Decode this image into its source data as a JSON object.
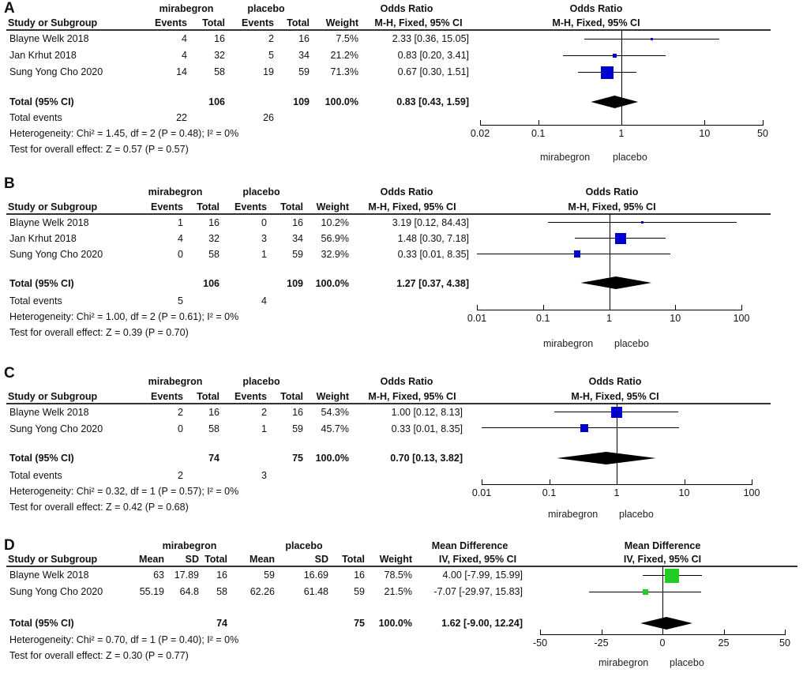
{
  "chart_data": [
    {
      "panel": "A",
      "type": "forest",
      "scale": "log",
      "measure": "Odds Ratio",
      "method": "M-H, Fixed, 95% CI",
      "group1": "mirabegron",
      "group2": "placebo",
      "headers": {
        "study": "Study or Subgroup",
        "events": "Events",
        "total": "Total",
        "weight": "Weight"
      },
      "studies": [
        {
          "name": "Blayne Welk 2018",
          "e1": "4",
          "n1": "16",
          "e2": "2",
          "n2": "16",
          "weight": "7.5%",
          "ci_text": "2.33 [0.36, 15.05]",
          "est": 2.33,
          "lo": 0.36,
          "hi": 15.05,
          "w": 7.5
        },
        {
          "name": "Jan Krhut 2018",
          "e1": "4",
          "n1": "32",
          "e2": "5",
          "n2": "34",
          "weight": "21.2%",
          "ci_text": "0.83 [0.20, 3.41]",
          "est": 0.83,
          "lo": 0.2,
          "hi": 3.41,
          "w": 21.2
        },
        {
          "name": "Sung Yong Cho 2020",
          "e1": "14",
          "n1": "58",
          "e2": "19",
          "n2": "59",
          "weight": "71.3%",
          "ci_text": "0.67 [0.30, 1.51]",
          "est": 0.67,
          "lo": 0.3,
          "hi": 1.51,
          "w": 71.3
        }
      ],
      "total": {
        "label": "Total (95% CI)",
        "n1": "106",
        "n2": "109",
        "weight": "100.0%",
        "ci_text": "0.83 [0.43, 1.59]",
        "est": 0.83,
        "lo": 0.43,
        "hi": 1.59
      },
      "total_events": {
        "label": "Total events",
        "e1": "22",
        "e2": "26"
      },
      "heterogeneity": "Heterogeneity: Chi² = 1.45, df = 2 (P = 0.48); I² = 0%",
      "overall": "Test for overall effect: Z = 0.57 (P = 0.57)",
      "ticks": [
        0.02,
        0.1,
        1,
        10,
        50
      ],
      "tick_labels": [
        "0.02",
        "0.1",
        "1",
        "10",
        "50"
      ],
      "xlim": [
        0.02,
        50
      ],
      "favours_left": "mirabegron",
      "favours_right": "placebo",
      "marker_color": "#0000cc"
    },
    {
      "panel": "B",
      "type": "forest",
      "scale": "log",
      "measure": "Odds Ratio",
      "method": "M-H, Fixed, 95% CI",
      "group1": "mirabegron",
      "group2": "placebo",
      "headers": {
        "study": "Study or Subgroup",
        "events": "Events",
        "total": "Total",
        "weight": "Weight"
      },
      "studies": [
        {
          "name": "Blayne Welk 2018",
          "e1": "1",
          "n1": "16",
          "e2": "0",
          "n2": "16",
          "weight": "10.2%",
          "ci_text": "3.19 [0.12, 84.43]",
          "est": 3.19,
          "lo": 0.12,
          "hi": 84.43,
          "w": 10.2
        },
        {
          "name": "Jan Krhut 2018",
          "e1": "4",
          "n1": "32",
          "e2": "3",
          "n2": "34",
          "weight": "56.9%",
          "ci_text": "1.48 [0.30, 7.18]",
          "est": 1.48,
          "lo": 0.3,
          "hi": 7.18,
          "w": 56.9
        },
        {
          "name": "Sung Yong Cho 2020",
          "e1": "0",
          "n1": "58",
          "e2": "1",
          "n2": "59",
          "weight": "32.9%",
          "ci_text": "0.33 [0.01, 8.35]",
          "est": 0.33,
          "lo": 0.01,
          "hi": 8.35,
          "w": 32.9
        }
      ],
      "total": {
        "label": "Total (95% CI)",
        "n1": "106",
        "n2": "109",
        "weight": "100.0%",
        "ci_text": "1.27 [0.37, 4.38]",
        "est": 1.27,
        "lo": 0.37,
        "hi": 4.38
      },
      "total_events": {
        "label": "Total events",
        "e1": "5",
        "e2": "4"
      },
      "heterogeneity": "Heterogeneity: Chi² = 1.00, df = 2 (P = 0.61); I² = 0%",
      "overall": "Test for overall effect: Z = 0.39 (P = 0.70)",
      "ticks": [
        0.01,
        0.1,
        1,
        10,
        100
      ],
      "tick_labels": [
        "0.01",
        "0.1",
        "1",
        "10",
        "100"
      ],
      "xlim": [
        0.01,
        100
      ],
      "favours_left": "mirabegron",
      "favours_right": "placebo",
      "marker_color": "#0000cc"
    },
    {
      "panel": "C",
      "type": "forest",
      "scale": "log",
      "measure": "Odds Ratio",
      "method": "M-H, Fixed, 95% CI",
      "group1": "mirabegron",
      "group2": "placebo",
      "headers": {
        "study": "Study or Subgroup",
        "events": "Events",
        "total": "Total",
        "weight": "Weight"
      },
      "studies": [
        {
          "name": "Blayne Welk 2018",
          "e1": "2",
          "n1": "16",
          "e2": "2",
          "n2": "16",
          "weight": "54.3%",
          "ci_text": "1.00 [0.12, 8.13]",
          "est": 1.0,
          "lo": 0.12,
          "hi": 8.13,
          "w": 54.3
        },
        {
          "name": "Sung Yong Cho 2020",
          "e1": "0",
          "n1": "58",
          "e2": "1",
          "n2": "59",
          "weight": "45.7%",
          "ci_text": "0.33 [0.01, 8.35]",
          "est": 0.33,
          "lo": 0.01,
          "hi": 8.35,
          "w": 45.7
        }
      ],
      "total": {
        "label": "Total (95% CI)",
        "n1": "74",
        "n2": "75",
        "weight": "100.0%",
        "ci_text": "0.70 [0.13, 3.82]",
        "est": 0.7,
        "lo": 0.13,
        "hi": 3.82
      },
      "total_events": {
        "label": "Total events",
        "e1": "2",
        "e2": "3"
      },
      "heterogeneity": "Heterogeneity: Chi² = 0.32, df = 1 (P = 0.57); I² = 0%",
      "overall": "Test for overall effect: Z = 0.42 (P = 0.68)",
      "ticks": [
        0.01,
        0.1,
        1,
        10,
        100
      ],
      "tick_labels": [
        "0.01",
        "0.1",
        "1",
        "10",
        "100"
      ],
      "xlim": [
        0.01,
        100
      ],
      "favours_left": "mirabegron",
      "favours_right": "placebo",
      "marker_color": "#0000cc"
    },
    {
      "panel": "D",
      "type": "forest",
      "scale": "linear",
      "measure": "Mean Difference",
      "method": "IV, Fixed, 95% CI",
      "group1": "mirabegron",
      "group2": "placebo",
      "headers": {
        "study": "Study or Subgroup",
        "mean": "Mean",
        "sd": "SD",
        "total": "Total",
        "weight": "Weight"
      },
      "studies": [
        {
          "name": "Blayne Welk 2018",
          "m1": "63",
          "sd1": "17.89",
          "n1": "16",
          "m2": "59",
          "sd2": "16.69",
          "n2": "16",
          "weight": "78.5%",
          "ci_text": "4.00 [-7.99, 15.99]",
          "est": 4.0,
          "lo": -7.99,
          "hi": 15.99,
          "w": 78.5
        },
        {
          "name": "Sung Yong Cho 2020",
          "m1": "55.19",
          "sd1": "64.8",
          "n1": "58",
          "m2": "62.26",
          "sd2": "61.48",
          "n2": "59",
          "weight": "21.5%",
          "ci_text": "-7.07 [-29.97, 15.83]",
          "est": -7.07,
          "lo": -29.97,
          "hi": 15.83,
          "w": 21.5
        }
      ],
      "total": {
        "label": "Total (95% CI)",
        "n1": "74",
        "n2": "75",
        "weight": "100.0%",
        "ci_text": "1.62 [-9.00, 12.24]",
        "est": 1.62,
        "lo": -9.0,
        "hi": 12.24
      },
      "heterogeneity": "Heterogeneity: Chi² = 0.70, df = 1 (P = 0.40); I² = 0%",
      "overall": "Test for overall effect: Z = 0.30 (P = 0.77)",
      "ticks": [
        -50,
        -25,
        0,
        25,
        50
      ],
      "tick_labels": [
        "-50",
        "-25",
        "0",
        "25",
        "50"
      ],
      "xlim": [
        -50,
        50
      ],
      "favours_left": "mirabegron",
      "favours_right": "placebo",
      "marker_color": "#22cc22"
    }
  ]
}
